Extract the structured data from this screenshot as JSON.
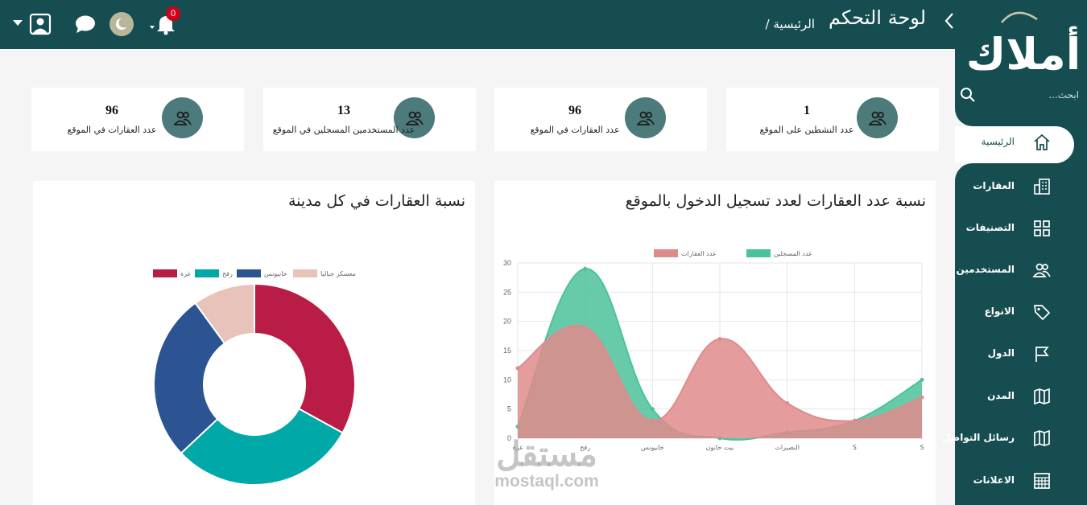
{
  "header": {
    "title": "لوحة التحكم",
    "breadcrumb": "/  الرئيسية",
    "notification_count": "0"
  },
  "sidebar": {
    "brand": "أملاك",
    "search_placeholder": "ابحث...",
    "items": [
      {
        "label": "الرئيسية",
        "icon": "home-icon",
        "active": true
      },
      {
        "label": "العقارات",
        "icon": "building-icon"
      },
      {
        "label": "التصنيفات",
        "icon": "grid-icon"
      },
      {
        "label": "المستخدمين",
        "icon": "users-icon"
      },
      {
        "label": "الانواع",
        "icon": "tag-icon"
      },
      {
        "label": "الدول",
        "icon": "flag-icon"
      },
      {
        "label": "المدن",
        "icon": "map-icon"
      },
      {
        "label": "رسائل التواصل",
        "icon": "map-icon"
      },
      {
        "label": "الاعلانات",
        "icon": "table-icon"
      }
    ]
  },
  "stats": [
    {
      "value": "96",
      "label": "عدد العقارات في الموقع"
    },
    {
      "value": "13",
      "label": "عدد المستخدمين المسجلين في الموقع"
    },
    {
      "value": "96",
      "label": "عدد العقارات في الموقع"
    },
    {
      "value": "1",
      "label": "عدد النشطين على الموقع"
    }
  ],
  "panels": {
    "line_title": "نسبة عدد العقارات لعدد تسجيل الدخول بالموقع",
    "donut_title": "نسبة العقارات في كل مدينة"
  },
  "chart_data": [
    {
      "type": "area",
      "categories": [
        "غزة",
        "رفح",
        "خانيونس",
        "بيت حانون",
        "النصيرات",
        "S",
        "S"
      ],
      "ylim": [
        0,
        30
      ],
      "yticks": [
        0,
        5,
        10,
        15,
        20,
        25,
        30
      ],
      "grid": true,
      "legend": "top",
      "series": [
        {
          "name": "عدد المسجلين",
          "values": [
            2,
            29,
            5,
            0,
            1,
            3,
            10
          ],
          "color": "#4cc29a"
        },
        {
          "name": "عدد العقارات",
          "values": [
            12,
            19,
            3,
            17,
            6,
            3,
            7
          ],
          "color": "#e08b8b"
        }
      ]
    },
    {
      "type": "pie",
      "legend": "top",
      "categories": [
        "غزة",
        "رفح",
        "خانيونس",
        "معسكر جباليا"
      ],
      "values": [
        33,
        30,
        27,
        10
      ],
      "colors": [
        "#b91c45",
        "#00a8a8",
        "#2c5492",
        "#e8c3b9"
      ]
    }
  ],
  "watermark": {
    "arabic": "مستقل",
    "latin": "mostaql.com"
  }
}
